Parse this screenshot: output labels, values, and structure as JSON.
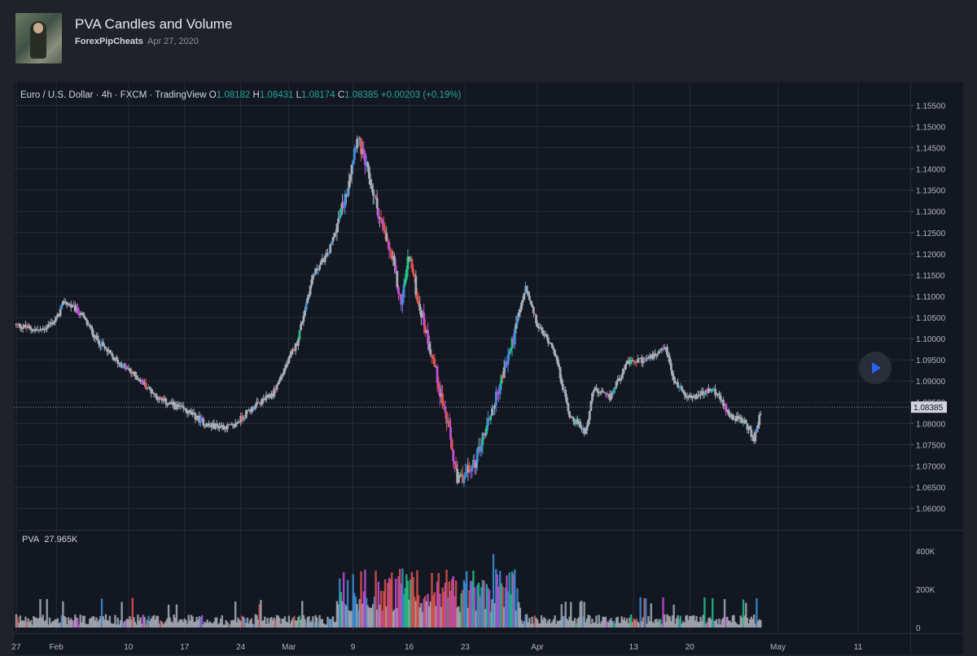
{
  "header": {
    "title": "PVA Candles and Volume",
    "author": "ForexPipCheats",
    "date": "Apr 27, 2020"
  },
  "legend": {
    "symbol": "Euro / U.S. Dollar · 4h · FXCM · TradingView",
    "o_key": "O",
    "o_val": "1.08182",
    "h_key": "H",
    "h_val": "1.08431",
    "l_key": "L",
    "l_val": "1.08174",
    "c_key": "C",
    "c_val": "1.08385",
    "change": "+0.00203 (+0.19%)"
  },
  "volume_label": {
    "name": "PVA",
    "value": "27.965K"
  },
  "colors": {
    "background": "#131722",
    "grid": "#262b36",
    "neutral_candle": "#a9adb6",
    "pva_green": "#26c281",
    "pva_blue": "#3d8fd6",
    "pva_red": "#e0544e",
    "pva_magenta": "#c34fd8",
    "price_tag": "#d1d4dc"
  },
  "play_button_icon": "play-icon",
  "chart_data": [
    {
      "type": "candlestick",
      "title": "Euro / U.S. Dollar · 4h · FXCM · TradingView",
      "y_ticks": [
        "1.15500",
        "1.15000",
        "1.14500",
        "1.14000",
        "1.13500",
        "1.13000",
        "1.12500",
        "1.12000",
        "1.11500",
        "1.11000",
        "1.10500",
        "1.10000",
        "1.09500",
        "1.09000",
        "1.08500",
        "1.08000",
        "1.07500",
        "1.07000",
        "1.06500",
        "1.06000"
      ],
      "ylim": [
        1.056,
        1.158
      ],
      "current_price": "1.08385",
      "x_ticks": [
        "27",
        "Feb",
        "10",
        "17",
        "24",
        "Mar",
        "9",
        "16",
        "23",
        "Apr",
        "13",
        "20",
        "May",
        "11"
      ],
      "x_tick_days": [
        -5,
        0,
        9,
        16,
        23,
        29,
        37,
        44,
        51,
        60,
        72,
        79,
        90,
        100
      ],
      "xlim_days": [
        -5.3,
        106.5
      ],
      "grid": true,
      "price_path": [
        [
          -5,
          1.1032
        ],
        [
          -2,
          1.1018
        ],
        [
          0,
          1.1045
        ],
        [
          1,
          1.1088
        ],
        [
          3,
          1.106
        ],
        [
          5,
          1.1
        ],
        [
          7,
          1.0955
        ],
        [
          10,
          1.091
        ],
        [
          13,
          1.0855
        ],
        [
          16,
          1.0832
        ],
        [
          19,
          1.0795
        ],
        [
          22,
          1.0792
        ],
        [
          24,
          1.083
        ],
        [
          27,
          1.087
        ],
        [
          30,
          1.099
        ],
        [
          32,
          1.115
        ],
        [
          34,
          1.1205
        ],
        [
          36,
          1.133
        ],
        [
          37.5,
          1.148
        ],
        [
          39,
          1.138
        ],
        [
          41,
          1.124
        ],
        [
          42,
          1.118
        ],
        [
          43,
          1.108
        ],
        [
          44,
          1.12
        ],
        [
          45,
          1.11
        ],
        [
          47,
          1.095
        ],
        [
          49,
          1.078
        ],
        [
          50,
          1.066
        ],
        [
          52,
          1.07
        ],
        [
          55,
          1.087
        ],
        [
          57,
          1.1
        ],
        [
          58.5,
          1.112
        ],
        [
          60,
          1.103
        ],
        [
          62,
          1.098
        ],
        [
          64,
          1.082
        ],
        [
          66,
          1.078
        ],
        [
          67,
          1.088
        ],
        [
          69,
          1.086
        ],
        [
          71,
          1.094
        ],
        [
          73,
          1.095
        ],
        [
          75,
          1.096
        ],
        [
          76,
          1.098
        ],
        [
          77,
          1.09
        ],
        [
          79,
          1.086
        ],
        [
          82,
          1.088
        ],
        [
          84,
          1.082
        ],
        [
          86,
          1.08
        ],
        [
          87,
          1.076
        ],
        [
          88,
          1.084
        ]
      ]
    },
    {
      "type": "bar",
      "title": "PVA 27.965K",
      "y_ticks": [
        "400K",
        "200K",
        "0"
      ],
      "y_tick_values": [
        400000,
        200000,
        0
      ],
      "ylim": [
        0,
        480000
      ],
      "last_value": 27965
    }
  ]
}
